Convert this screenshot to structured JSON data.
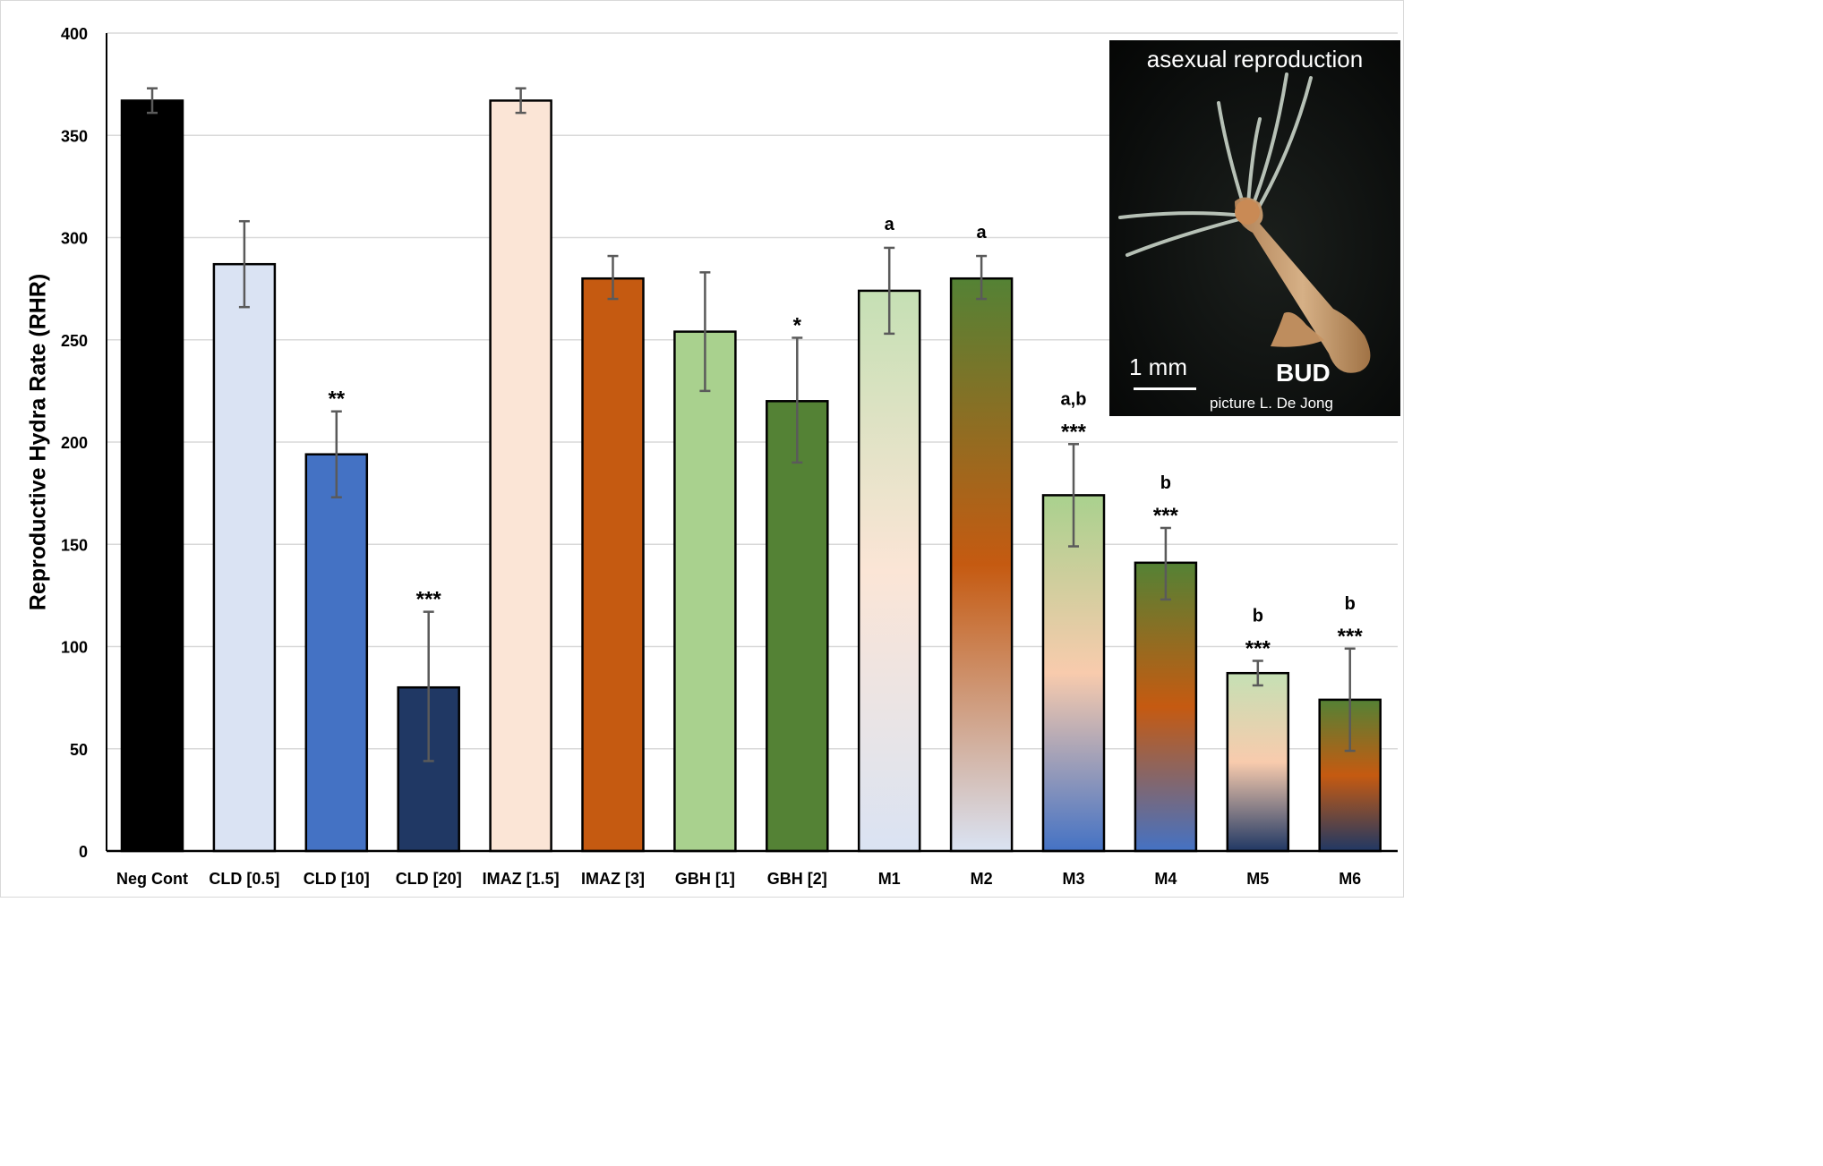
{
  "chart_data": {
    "type": "bar",
    "title": "",
    "xlabel": "",
    "ylabel": "Reproductive Hydra Rate (RHR)",
    "ylim": [
      0,
      400
    ],
    "yticks": [
      0,
      50,
      100,
      150,
      200,
      250,
      300,
      350,
      400
    ],
    "grid": "horizontal",
    "categories": [
      "Neg Cont",
      "CLD [0.5]",
      "CLD [10]",
      "CLD [20]",
      "IMAZ [1.5]",
      "IMAZ [3]",
      "GBH [1]",
      "GBH [2]",
      "M1",
      "M2",
      "M3",
      "M4",
      "M5",
      "M6"
    ],
    "values": [
      367,
      287,
      194,
      80,
      367,
      280,
      254,
      220,
      274,
      280,
      174,
      141,
      87,
      74
    ],
    "error_low": [
      361,
      266,
      173,
      44,
      361,
      270,
      225,
      190,
      253,
      270,
      149,
      123,
      81,
      49
    ],
    "error_high": [
      373,
      308,
      215,
      117,
      373,
      291,
      283,
      251,
      295,
      291,
      199,
      158,
      93,
      99
    ],
    "significance": [
      "",
      "",
      "**",
      "***",
      "",
      "",
      "",
      "*",
      "",
      "",
      "***",
      "***",
      "***",
      "***"
    ],
    "letters": [
      "",
      "",
      "",
      "",
      "",
      "",
      "",
      "",
      "a",
      "a",
      "a,b",
      "b",
      "b",
      "b"
    ],
    "fills": [
      [
        "#000000"
      ],
      [
        "#dae3f3"
      ],
      [
        "#4472c4"
      ],
      [
        "#203864"
      ],
      [
        "#fbe5d6"
      ],
      [
        "#c55a11"
      ],
      [
        "#a9d18e"
      ],
      [
        "#548235"
      ],
      [
        "#c5e0b4",
        "#fbe5d6",
        "#dae3f3"
      ],
      [
        "#548235",
        "#c55a11",
        "#dae3f3"
      ],
      [
        "#a9d18e",
        "#f8cbad",
        "#4472c4"
      ],
      [
        "#548235",
        "#c55a11",
        "#4472c4"
      ],
      [
        "#c5e0b4",
        "#f8cbad",
        "#203864"
      ],
      [
        "#548235",
        "#c55a11",
        "#203864"
      ]
    ]
  },
  "inset": {
    "title": "asexual reproduction",
    "scale_label": "1 mm",
    "bud_label": "BUD",
    "credit": "picture L. De Jong"
  }
}
